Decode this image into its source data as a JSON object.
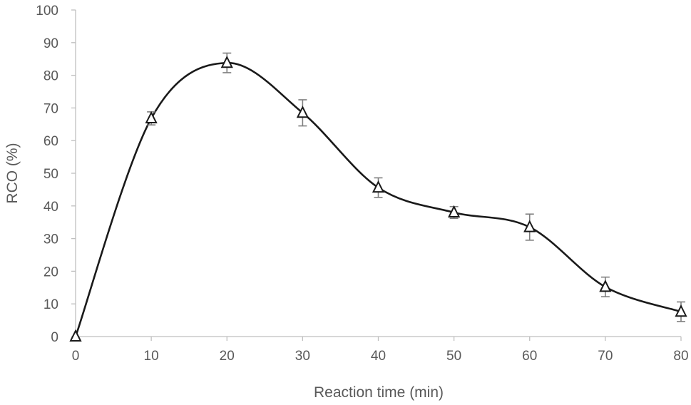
{
  "chart_data": {
    "type": "scatter",
    "title": "",
    "xlabel": "Reaction time (min)",
    "ylabel": "RCO (%)",
    "xlim": [
      0,
      80
    ],
    "ylim": [
      0,
      100
    ],
    "xticks": [
      0,
      10,
      20,
      30,
      40,
      50,
      60,
      70,
      80
    ],
    "yticks": [
      0,
      10,
      20,
      30,
      40,
      50,
      60,
      70,
      80,
      90,
      100
    ],
    "grid": false,
    "smooth_line": true,
    "marker": "open-triangle",
    "series": [
      {
        "name": "RCO",
        "x": [
          0,
          10,
          20,
          30,
          40,
          50,
          60,
          70,
          80
        ],
        "y": [
          0,
          66.8,
          83.8,
          68.5,
          45.6,
          38.0,
          33.5,
          15.2,
          7.6
        ],
        "error": [
          0,
          2.0,
          3.0,
          4.0,
          3.0,
          1.8,
          4.0,
          3.0,
          3.0
        ]
      }
    ],
    "colors": {
      "line": "#1a1a1a",
      "axis": "#bfbfbf",
      "error_bar": "#7f7f7f",
      "text": "#595959"
    }
  }
}
